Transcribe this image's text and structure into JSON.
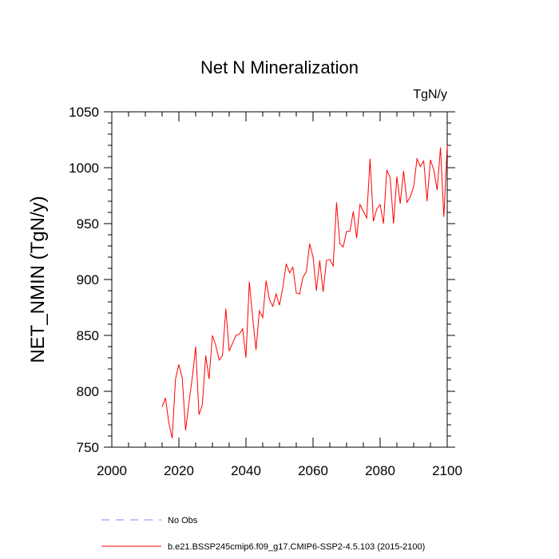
{
  "chart_data": {
    "type": "line",
    "title": "Net N Mineralization",
    "units": "TgN/y",
    "ylabel": "NET_NMIN  (TgN/y)",
    "xlabel": "",
    "xlim": [
      2000,
      2100
    ],
    "ylim": [
      750,
      1050
    ],
    "x_ticks": [
      2000,
      2020,
      2040,
      2060,
      2080,
      2100
    ],
    "y_ticks": [
      750,
      800,
      850,
      900,
      950,
      1000,
      1050
    ],
    "grid": false,
    "legend_position": "bottom",
    "series": [
      {
        "name": "No Obs",
        "color": "#8080ff",
        "style": "dashed",
        "x": [],
        "values": []
      },
      {
        "name": "b.e21.BSSP245cmip6.f09_g17.CMIP6-SSP2-4.5.103 (2015-2100)",
        "color": "#ff0000",
        "style": "solid",
        "x": [
          2015,
          2016,
          2017,
          2018,
          2019,
          2020,
          2021,
          2022,
          2023,
          2024,
          2025,
          2026,
          2027,
          2028,
          2029,
          2030,
          2031,
          2032,
          2033,
          2034,
          2035,
          2036,
          2037,
          2038,
          2039,
          2040,
          2041,
          2042,
          2043,
          2044,
          2045,
          2046,
          2047,
          2048,
          2049,
          2050,
          2051,
          2052,
          2053,
          2054,
          2055,
          2056,
          2057,
          2058,
          2059,
          2060,
          2061,
          2062,
          2063,
          2064,
          2065,
          2066,
          2067,
          2068,
          2069,
          2070,
          2071,
          2072,
          2073,
          2074,
          2075,
          2076,
          2077,
          2078,
          2079,
          2080,
          2081,
          2082,
          2083,
          2084,
          2085,
          2086,
          2087,
          2088,
          2089,
          2090,
          2091,
          2092,
          2093,
          2094,
          2095,
          2096,
          2097,
          2098,
          2099,
          2100
        ],
        "values": [
          786,
          794,
          772,
          758,
          811,
          824,
          812,
          765,
          790,
          812,
          840,
          779,
          788,
          832,
          811,
          850,
          841,
          828,
          832,
          874,
          836,
          843,
          850,
          851,
          856,
          830,
          898,
          866,
          837,
          872,
          866,
          899,
          882,
          876,
          887,
          877,
          893,
          914,
          906,
          911,
          888,
          887,
          902,
          907,
          932,
          920,
          890,
          917,
          889,
          917,
          918,
          912,
          969,
          932,
          929,
          943,
          943,
          961,
          937,
          967,
          961,
          955,
          1008,
          952,
          963,
          967,
          950,
          998,
          991,
          950,
          992,
          968,
          997,
          969,
          974,
          983,
          1008,
          1001,
          1006,
          970,
          1007,
          998,
          980,
          1018,
          956,
          1020
        ]
      }
    ]
  }
}
